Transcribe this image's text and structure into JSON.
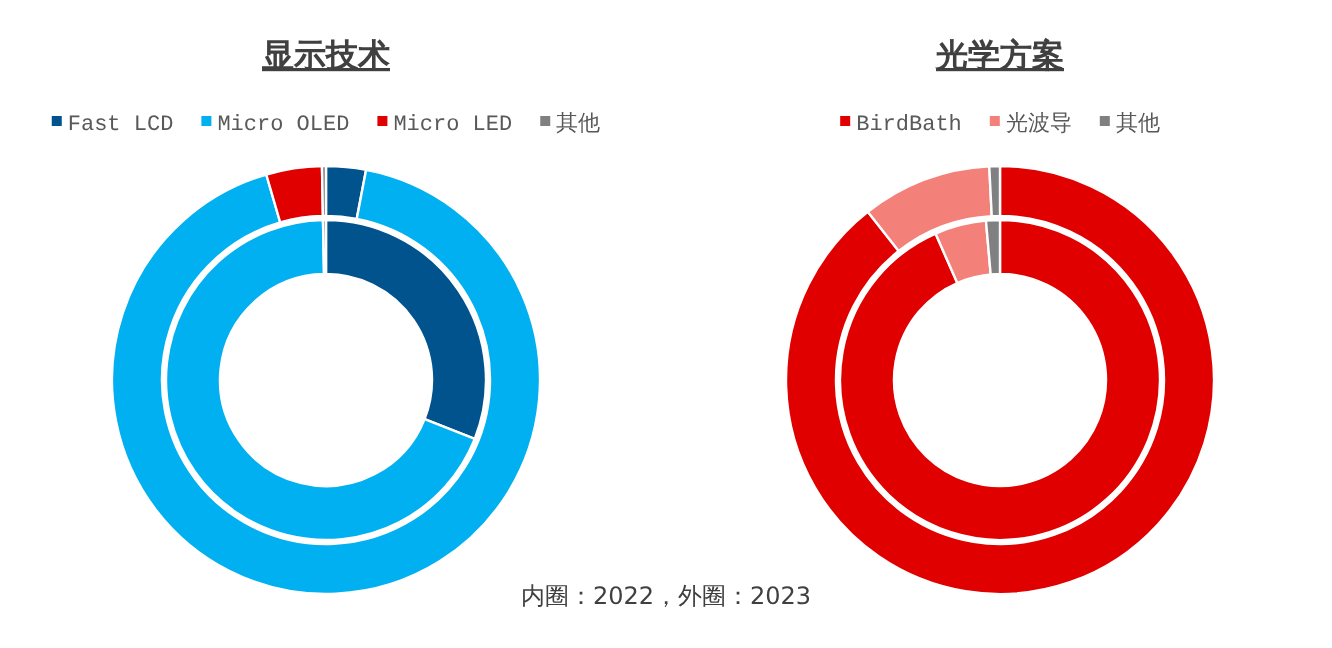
{
  "chart_data": [
    {
      "type": "donut",
      "title": "显示技术",
      "categories": [
        "Fast LCD",
        "Micro OLED",
        "Micro LED",
        "其他"
      ],
      "colors": [
        "#00538c",
        "#00b0f0",
        "#e00000",
        "#808080"
      ],
      "legend": "top",
      "series": [
        {
          "values": [
            31,
            68.7,
            0,
            0.3
          ]
        },
        {
          "values": [
            3,
            92.5,
            4.2,
            0.3
          ]
        }
      ]
    },
    {
      "type": "donut",
      "title": "光学方案",
      "categories": [
        "BirdBath",
        "光波导",
        "其他"
      ],
      "colors": [
        "#e00000",
        "#f4807a",
        "#808080"
      ],
      "legend": "top",
      "series": [
        {
          "values": [
            93.4,
            5.2,
            1.4
          ]
        },
        {
          "values": [
            89.4,
            9.8,
            0.8
          ]
        }
      ],
      "annotations": [
        "内圈：2022，外圈：2023"
      ]
    }
  ]
}
